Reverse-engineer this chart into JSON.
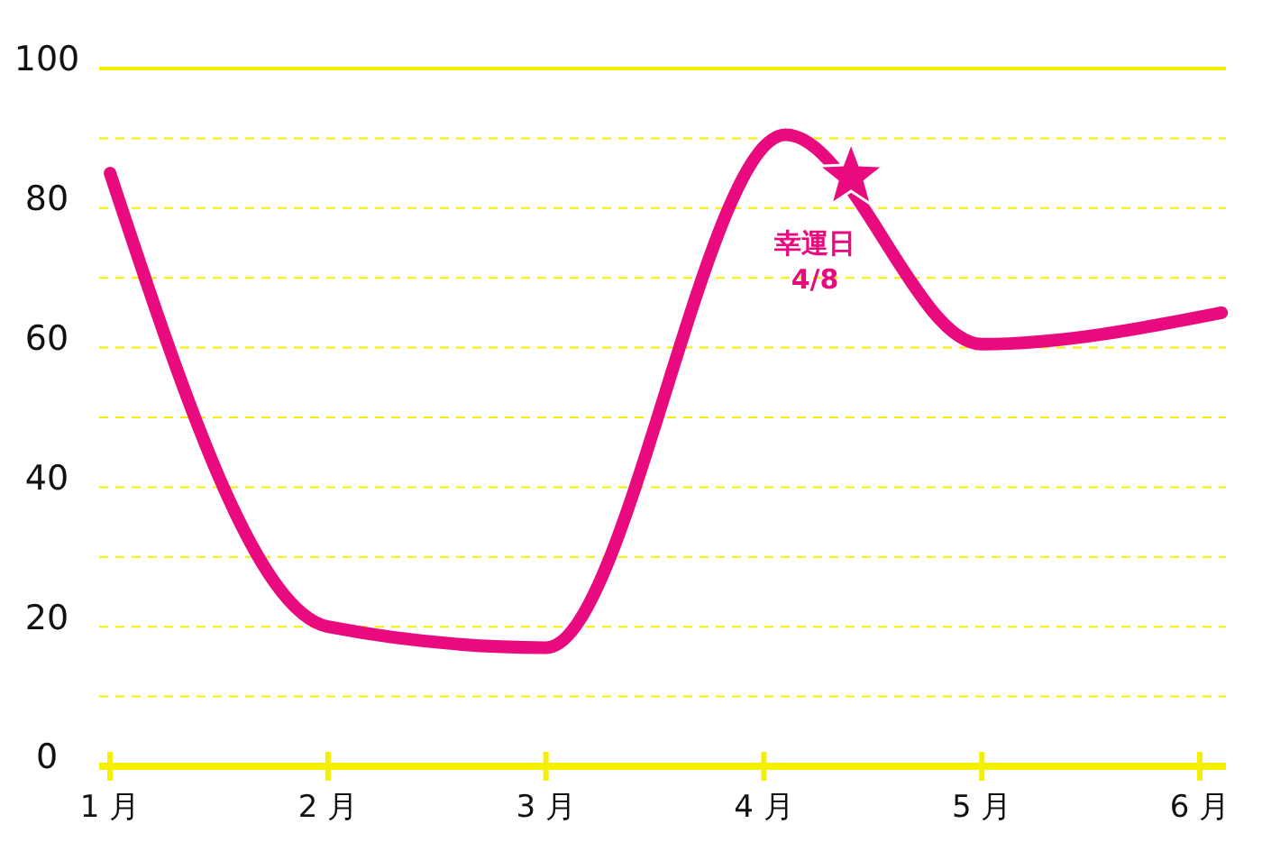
{
  "chart_data": {
    "type": "line",
    "x": [
      1,
      2,
      3,
      4.1,
      5,
      6.1
    ],
    "series": [
      {
        "color": "#ea0a80",
        "values": [
          85,
          20,
          17,
          90.5,
          60.5,
          65
        ]
      },
      {
        "type": "scatter",
        "marker": "star",
        "color": "#ea0a80",
        "x": [
          4.4
        ],
        "values": [
          84.5
        ]
      }
    ],
    "xlim": [
      0.95,
      6.12
    ],
    "xticks": [
      {
        "value": 1,
        "label": "1 月"
      },
      {
        "value": 2,
        "label": "2 月"
      },
      {
        "value": 3,
        "label": "3 月"
      },
      {
        "value": 4,
        "label": "4 月"
      },
      {
        "value": 5,
        "label": "5 月"
      },
      {
        "value": 6,
        "label": "6 月"
      }
    ],
    "ylim": [
      0,
      100
    ],
    "yticks": [
      0,
      {
        "value": 10,
        "label": null
      },
      20,
      {
        "value": 30,
        "label": null
      },
      40,
      {
        "value": 50,
        "label": null
      },
      60,
      {
        "value": 70,
        "label": null
      },
      80,
      {
        "value": 90,
        "label": null
      },
      100
    ],
    "grid": "y",
    "marker": "none",
    "line_style": "solid",
    "annotations": [
      {
        "text": "幸運日\n4/8",
        "x": 4.4,
        "y": 84.5
      }
    ]
  }
}
